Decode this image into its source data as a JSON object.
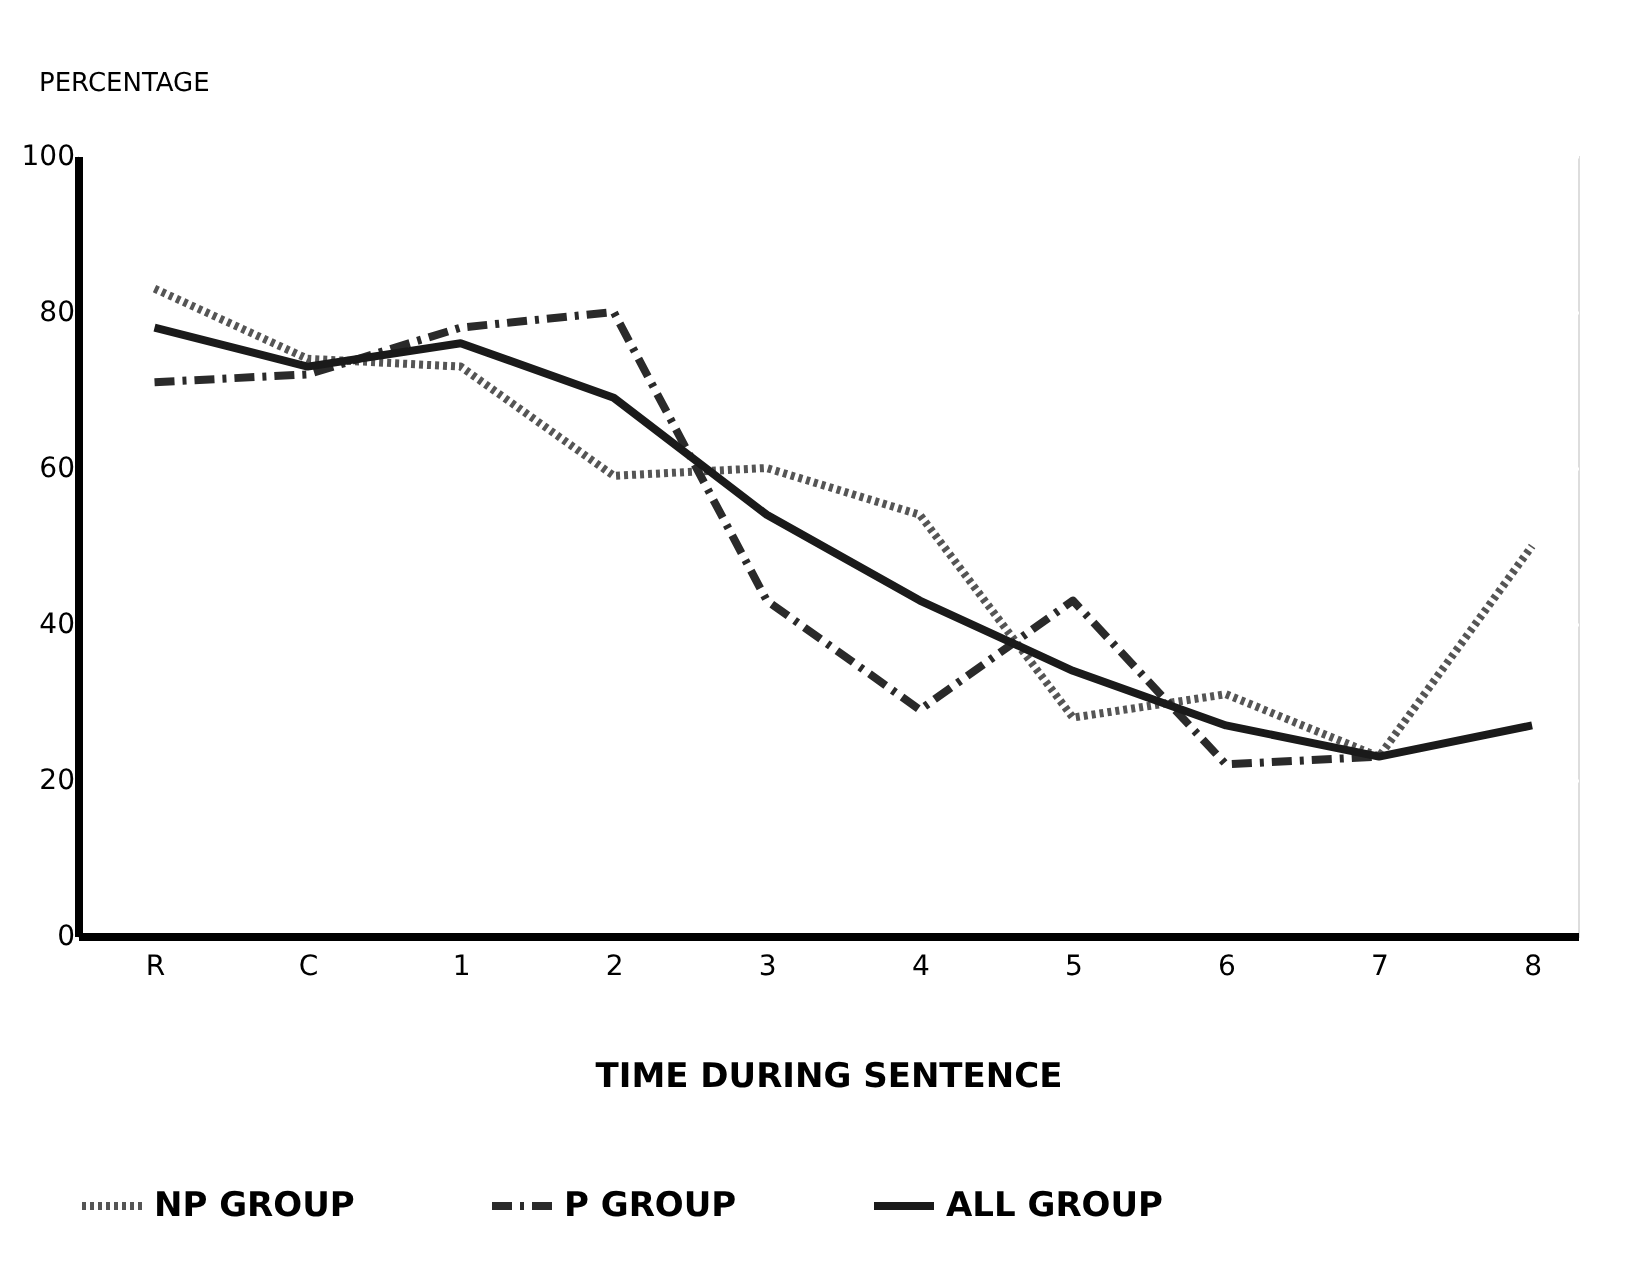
{
  "chart_data": {
    "type": "line",
    "ylabel": "PERCENTAGE",
    "xlabel": "TIME DURING SENTENCE",
    "categories": [
      "R",
      "C",
      "1",
      "2",
      "3",
      "4",
      "5",
      "6",
      "7",
      "8"
    ],
    "ylim": [
      0,
      100
    ],
    "yticks": [
      0,
      20,
      40,
      60,
      80,
      100
    ],
    "grid": true,
    "legend": "bottom",
    "marker": "none",
    "series": [
      {
        "name": "NP GROUP",
        "color": "#555555",
        "line_style": "dotted",
        "values": [
          83,
          74,
          73,
          59,
          60,
          54,
          28,
          31,
          23,
          50
        ]
      },
      {
        "name": "P GROUP",
        "color": "#2a2a2a",
        "line_style": "dashdot",
        "values": [
          71,
          72,
          78,
          80,
          43,
          29,
          43,
          22,
          23,
          null
        ]
      },
      {
        "name": "ALL GROUP",
        "color": "#1a1a1a",
        "line_style": "solid",
        "values": [
          78,
          73,
          76,
          69,
          54,
          43,
          34,
          27,
          23,
          27
        ]
      }
    ]
  }
}
